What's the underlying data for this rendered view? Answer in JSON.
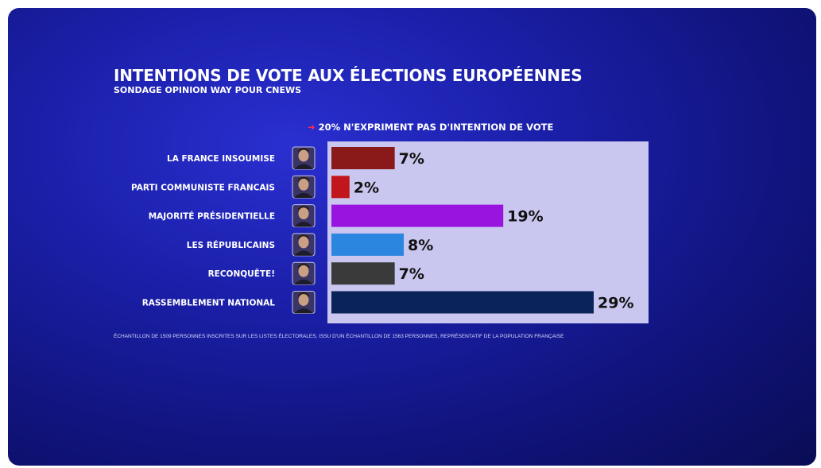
{
  "title": "INTENTIONS DE VOTE AUX ÉLECTIONS EUROPÉENNES",
  "subtitle": "SONDAGE OPINION WAY POUR CNEWS",
  "note": "20% N'EXPRIMENT PAS D'INTENTION DE VOTE",
  "footer": "ÉCHANTILLON DE 1509 PERSONNES INSCRITES SUR LES LISTES ÉLECTORALES, ISSU D'UN ÉCHANTILLON DE 1563 PERSONNES, REPRÉSENTATIF DE LA POPULATION FRANÇAISE",
  "colors": {
    "plot_background": "#c9c6ef",
    "title": "#ffffff",
    "value_text": "#111111"
  },
  "chart_data": {
    "type": "bar",
    "orientation": "horizontal",
    "categories": [
      "LA FRANCE INSOUMISE",
      "PARTI COMMUNISTE FRANCAIS",
      "MAJORITÉ PRÉSIDENTIELLE",
      "LES RÉPUBLICAINS",
      "RECONQUÊTE!",
      "RASSEMBLEMENT NATIONAL"
    ],
    "values": [
      7,
      2,
      19,
      8,
      7,
      29
    ],
    "value_labels": [
      "7%",
      "2%",
      "19%",
      "8%",
      "7%",
      "29%"
    ],
    "bar_colors": [
      "#8a1a1a",
      "#c0161c",
      "#9a14e0",
      "#2a86de",
      "#3a3a3a",
      "#0a2358"
    ],
    "unit": "%",
    "xlim": [
      0,
      29
    ],
    "grid": false,
    "legend": "none"
  }
}
